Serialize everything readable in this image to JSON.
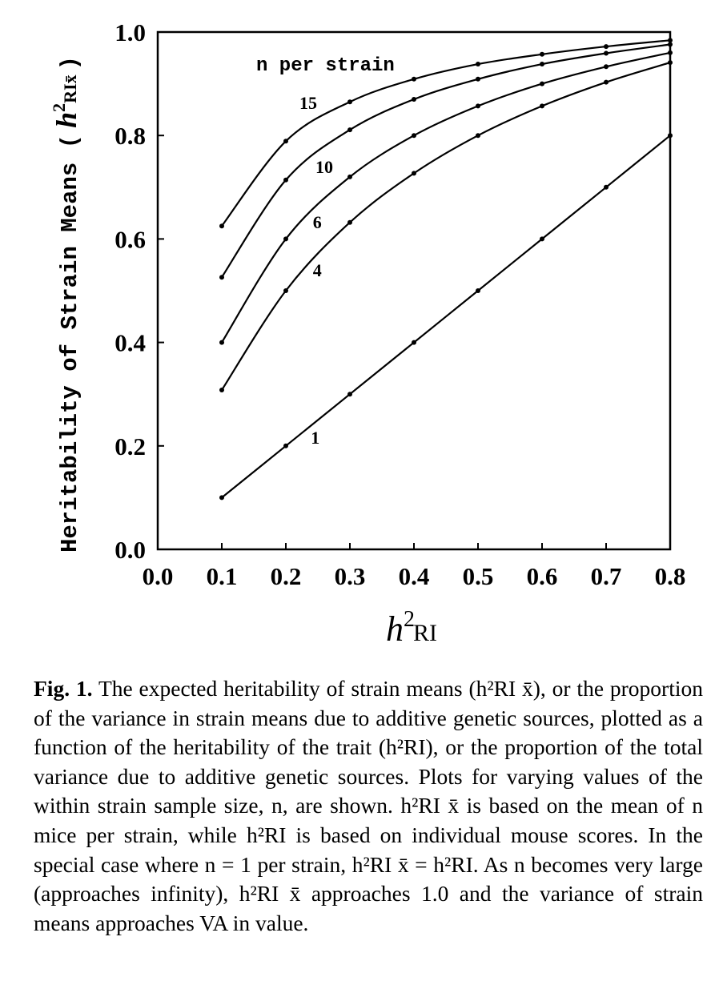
{
  "chart_data": {
    "type": "line",
    "xlabel": "h2RI",
    "xlabel_base": "h",
    "xlabel_sup": "2",
    "xlabel_sub": "RI",
    "ylabel": "Heritability of Strain Means ( h2RIx̄ )",
    "ylabel_text": "Heritability of Strain Means (",
    "ylabel_h": "h",
    "ylabel_sup": "2",
    "ylabel_sub": "RIx̄",
    "ylabel_close": ")",
    "xlim": [
      0.0,
      0.8
    ],
    "ylim": [
      0.0,
      1.0
    ],
    "xticks": [
      "0.0",
      "0.1",
      "0.2",
      "0.3",
      "0.4",
      "0.5",
      "0.6",
      "0.7",
      "0.8"
    ],
    "yticks": [
      "0.0",
      "0.2",
      "0.4",
      "0.6",
      "0.8",
      "1.0"
    ],
    "grid": false,
    "legend_title": "n per strain",
    "x": [
      0.1,
      0.2,
      0.3,
      0.4,
      0.5,
      0.6,
      0.7,
      0.8
    ],
    "series": [
      {
        "name": "15",
        "values": [
          0.625,
          0.789,
          0.865,
          0.909,
          0.938,
          0.957,
          0.972,
          0.984
        ],
        "label_at": [
          0.235,
          0.864
        ]
      },
      {
        "name": "10",
        "values": [
          0.526,
          0.714,
          0.811,
          0.87,
          0.909,
          0.938,
          0.959,
          0.976
        ],
        "label_at": [
          0.26,
          0.74
        ]
      },
      {
        "name": "6",
        "values": [
          0.4,
          0.6,
          0.72,
          0.8,
          0.857,
          0.9,
          0.933,
          0.96
        ],
        "label_at": [
          0.249,
          0.633
        ]
      },
      {
        "name": "4",
        "values": [
          0.308,
          0.5,
          0.632,
          0.727,
          0.8,
          0.857,
          0.903,
          0.941
        ],
        "label_at": [
          0.249,
          0.54
        ]
      },
      {
        "name": "1",
        "values": [
          0.1,
          0.2,
          0.3,
          0.4,
          0.5,
          0.6,
          0.7,
          0.8
        ],
        "label_at": [
          0.246,
          0.217
        ]
      }
    ]
  },
  "caption": {
    "label": "Fig. 1.",
    "text": "The expected heritability of strain means (h²RI x̄), or the proportion of the variance in strain means due to additive genetic sources, plotted as a function of the heritability of the trait (h²RI), or the proportion of the total variance due to additive genetic sources. Plots for varying values of the within strain sample size, n, are shown. h²RI x̄ is based on the mean of n mice per strain, while h²RI is based on individual mouse scores. In the special case where n = 1 per strain, h²RI x̄ = h²RI. As n becomes very large (approaches infinity), h²RI x̄ approaches 1.0 and the variance of strain means approaches VA in value."
  }
}
